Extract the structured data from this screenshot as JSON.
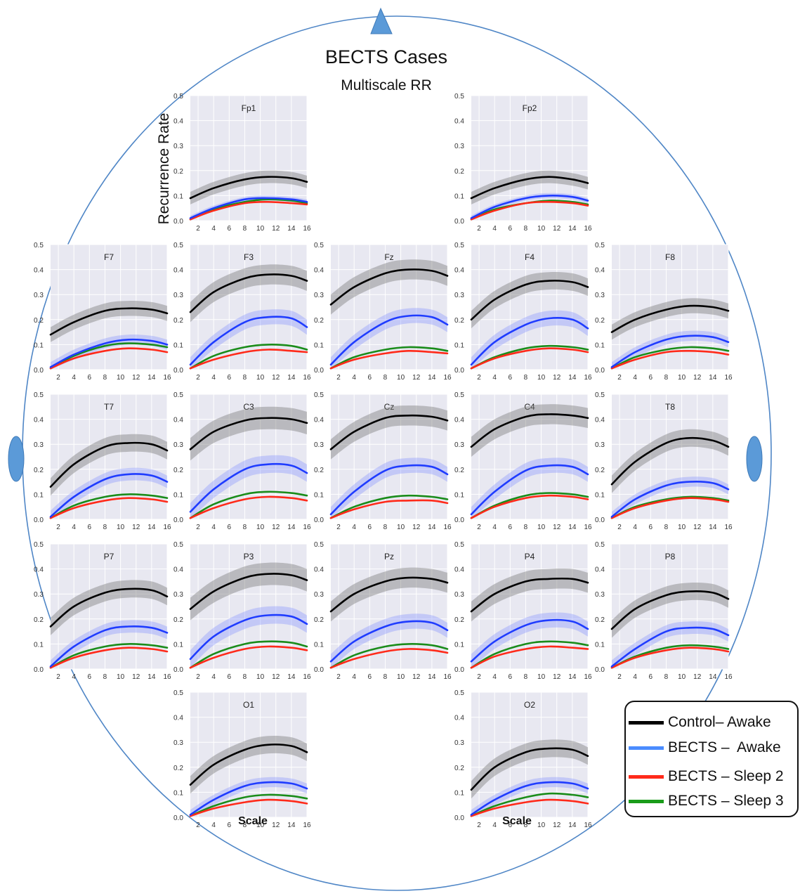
{
  "title": "BECTS Cases",
  "subtitle": "Multiscale RR",
  "ylabel": "Recurrence Rate",
  "xlabel": "Scale",
  "colors": {
    "background": "#e8e8f1",
    "grid": "#ffffff",
    "head": "#4f86c6",
    "marker": "#5b9ad8",
    "control": "#000000",
    "bects_awake": "#1f3cff",
    "sleep2": "#ff2a1a",
    "sleep3": "#1a8c1a"
  },
  "legend": [
    {
      "label": "Control– Awake",
      "color": "#000000"
    },
    {
      "label": "BECTS –  Awake",
      "color": "#4a8cff"
    },
    {
      "label": "BECTS – Sleep 2",
      "color": "#ff2a1a"
    },
    {
      "label": "BECTS – Sleep 3",
      "color": "#1a9c1a"
    }
  ],
  "chart_data": {
    "type": "line",
    "x_ticks": [
      2,
      4,
      6,
      8,
      10,
      12,
      14,
      16
    ],
    "y_ticks": [
      "0.0",
      "0.1",
      "0.2",
      "0.3",
      "0.4",
      "0.5"
    ],
    "ylim": [
      0,
      0.5
    ],
    "xlim": [
      1,
      16
    ],
    "x": [
      1,
      4,
      8,
      11,
      14,
      16
    ],
    "series_names": [
      "Control– Awake",
      "BECTS –  Awake",
      "BECTS – Sleep 2",
      "BECTS – Sleep 3"
    ],
    "panels": [
      {
        "label": "Fp1",
        "control": [
          0.09,
          0.13,
          0.165,
          0.175,
          0.17,
          0.155
        ],
        "control_band": 0.025,
        "awake": [
          0.01,
          0.05,
          0.085,
          0.09,
          0.085,
          0.075
        ],
        "awake_band": 0.01,
        "sleep2": [
          0.005,
          0.04,
          0.07,
          0.075,
          0.07,
          0.065
        ],
        "sleep3": [
          0.005,
          0.045,
          0.075,
          0.085,
          0.08,
          0.07
        ]
      },
      {
        "label": "Fp2",
        "control": [
          0.09,
          0.13,
          0.165,
          0.175,
          0.165,
          0.15
        ],
        "control_band": 0.025,
        "awake": [
          0.01,
          0.055,
          0.09,
          0.1,
          0.095,
          0.08
        ],
        "awake_band": 0.01,
        "sleep2": [
          0.005,
          0.04,
          0.07,
          0.075,
          0.07,
          0.06
        ],
        "sleep3": [
          0.005,
          0.045,
          0.07,
          0.08,
          0.075,
          0.065
        ]
      },
      {
        "label": "F7",
        "control": [
          0.14,
          0.19,
          0.235,
          0.245,
          0.24,
          0.225
        ],
        "control_band": 0.03,
        "awake": [
          0.01,
          0.06,
          0.105,
          0.12,
          0.115,
          0.1
        ],
        "awake_band": 0.02,
        "sleep2": [
          0.005,
          0.045,
          0.075,
          0.085,
          0.08,
          0.07
        ],
        "sleep3": [
          0.005,
          0.055,
          0.095,
          0.105,
          0.1,
          0.09
        ]
      },
      {
        "label": "F3",
        "control": [
          0.23,
          0.31,
          0.365,
          0.38,
          0.375,
          0.355
        ],
        "control_band": 0.04,
        "awake": [
          0.02,
          0.11,
          0.19,
          0.21,
          0.205,
          0.17
        ],
        "awake_band": 0.03,
        "sleep2": [
          0.005,
          0.04,
          0.07,
          0.08,
          0.075,
          0.07
        ],
        "sleep3": [
          0.005,
          0.055,
          0.09,
          0.1,
          0.095,
          0.08
        ]
      },
      {
        "label": "Fz",
        "control": [
          0.26,
          0.33,
          0.385,
          0.4,
          0.395,
          0.375
        ],
        "control_band": 0.04,
        "awake": [
          0.02,
          0.11,
          0.19,
          0.215,
          0.21,
          0.18
        ],
        "awake_band": 0.03,
        "sleep2": [
          0.005,
          0.04,
          0.065,
          0.075,
          0.07,
          0.065
        ],
        "sleep3": [
          0.005,
          0.05,
          0.08,
          0.09,
          0.085,
          0.075
        ]
      },
      {
        "label": "F4",
        "control": [
          0.2,
          0.28,
          0.34,
          0.355,
          0.35,
          0.33
        ],
        "control_band": 0.035,
        "awake": [
          0.02,
          0.11,
          0.18,
          0.205,
          0.2,
          0.165
        ],
        "awake_band": 0.03,
        "sleep2": [
          0.005,
          0.045,
          0.075,
          0.085,
          0.08,
          0.07
        ],
        "sleep3": [
          0.005,
          0.05,
          0.085,
          0.095,
          0.09,
          0.08
        ]
      },
      {
        "label": "F8",
        "control": [
          0.15,
          0.2,
          0.24,
          0.255,
          0.25,
          0.235
        ],
        "control_band": 0.03,
        "awake": [
          0.01,
          0.07,
          0.12,
          0.135,
          0.13,
          0.11
        ],
        "awake_band": 0.02,
        "sleep2": [
          0.005,
          0.04,
          0.07,
          0.075,
          0.07,
          0.06
        ],
        "sleep3": [
          0.005,
          0.05,
          0.08,
          0.09,
          0.085,
          0.075
        ]
      },
      {
        "label": "T7",
        "control": [
          0.13,
          0.22,
          0.29,
          0.305,
          0.3,
          0.275
        ],
        "control_band": 0.035,
        "awake": [
          0.01,
          0.09,
          0.16,
          0.18,
          0.175,
          0.15
        ],
        "awake_band": 0.025,
        "sleep2": [
          0.005,
          0.045,
          0.075,
          0.085,
          0.08,
          0.07
        ],
        "sleep3": [
          0.005,
          0.055,
          0.09,
          0.1,
          0.095,
          0.085
        ]
      },
      {
        "label": "C3",
        "control": [
          0.28,
          0.35,
          0.395,
          0.405,
          0.4,
          0.385
        ],
        "control_band": 0.045,
        "awake": [
          0.03,
          0.12,
          0.2,
          0.22,
          0.215,
          0.185
        ],
        "awake_band": 0.035,
        "sleep2": [
          0.005,
          0.045,
          0.08,
          0.09,
          0.085,
          0.075
        ],
        "sleep3": [
          0.005,
          0.06,
          0.1,
          0.11,
          0.105,
          0.095
        ]
      },
      {
        "label": "Cz",
        "control": [
          0.28,
          0.35,
          0.405,
          0.415,
          0.41,
          0.395
        ],
        "control_band": 0.04,
        "awake": [
          0.02,
          0.11,
          0.195,
          0.215,
          0.21,
          0.18
        ],
        "awake_band": 0.03,
        "sleep2": [
          0.005,
          0.04,
          0.07,
          0.075,
          0.075,
          0.065
        ],
        "sleep3": [
          0.005,
          0.05,
          0.085,
          0.095,
          0.09,
          0.08
        ]
      },
      {
        "label": "C4",
        "control": [
          0.29,
          0.36,
          0.41,
          0.42,
          0.415,
          0.405
        ],
        "control_band": 0.04,
        "awake": [
          0.02,
          0.11,
          0.195,
          0.215,
          0.21,
          0.18
        ],
        "awake_band": 0.03,
        "sleep2": [
          0.005,
          0.05,
          0.085,
          0.095,
          0.09,
          0.08
        ],
        "sleep3": [
          0.005,
          0.055,
          0.095,
          0.105,
          0.1,
          0.09
        ]
      },
      {
        "label": "T8",
        "control": [
          0.14,
          0.23,
          0.305,
          0.325,
          0.315,
          0.29
        ],
        "control_band": 0.035,
        "awake": [
          0.01,
          0.08,
          0.135,
          0.15,
          0.145,
          0.12
        ],
        "awake_band": 0.02,
        "sleep2": [
          0.005,
          0.045,
          0.075,
          0.085,
          0.08,
          0.07
        ],
        "sleep3": [
          0.005,
          0.05,
          0.08,
          0.09,
          0.085,
          0.075
        ]
      },
      {
        "label": "P7",
        "control": [
          0.17,
          0.25,
          0.305,
          0.32,
          0.315,
          0.29
        ],
        "control_band": 0.035,
        "awake": [
          0.01,
          0.09,
          0.155,
          0.17,
          0.165,
          0.145
        ],
        "awake_band": 0.025,
        "sleep2": [
          0.005,
          0.045,
          0.075,
          0.085,
          0.08,
          0.07
        ],
        "sleep3": [
          0.005,
          0.055,
          0.09,
          0.1,
          0.095,
          0.085
        ]
      },
      {
        "label": "P3",
        "control": [
          0.24,
          0.31,
          0.365,
          0.38,
          0.375,
          0.355
        ],
        "control_band": 0.045,
        "awake": [
          0.04,
          0.13,
          0.195,
          0.215,
          0.21,
          0.18
        ],
        "awake_band": 0.035,
        "sleep2": [
          0.005,
          0.045,
          0.08,
          0.09,
          0.085,
          0.075
        ],
        "sleep3": [
          0.005,
          0.06,
          0.1,
          0.11,
          0.105,
          0.09
        ]
      },
      {
        "label": "Pz",
        "control": [
          0.23,
          0.3,
          0.35,
          0.365,
          0.36,
          0.345
        ],
        "control_band": 0.04,
        "awake": [
          0.03,
          0.11,
          0.17,
          0.19,
          0.185,
          0.155
        ],
        "awake_band": 0.03,
        "sleep2": [
          0.005,
          0.04,
          0.07,
          0.08,
          0.075,
          0.065
        ],
        "sleep3": [
          0.005,
          0.055,
          0.09,
          0.1,
          0.095,
          0.08
        ]
      },
      {
        "label": "P4",
        "control": [
          0.23,
          0.3,
          0.35,
          0.36,
          0.36,
          0.345
        ],
        "control_band": 0.04,
        "awake": [
          0.03,
          0.11,
          0.175,
          0.195,
          0.19,
          0.16
        ],
        "awake_band": 0.03,
        "sleep2": [
          0.005,
          0.05,
          0.08,
          0.09,
          0.085,
          0.08
        ],
        "sleep3": [
          0.005,
          0.06,
          0.1,
          0.11,
          0.105,
          0.095
        ]
      },
      {
        "label": "P8",
        "control": [
          0.16,
          0.24,
          0.295,
          0.31,
          0.305,
          0.28
        ],
        "control_band": 0.035,
        "awake": [
          0.01,
          0.08,
          0.15,
          0.165,
          0.16,
          0.135
        ],
        "awake_band": 0.025,
        "sleep2": [
          0.005,
          0.045,
          0.075,
          0.085,
          0.08,
          0.07
        ],
        "sleep3": [
          0.005,
          0.05,
          0.085,
          0.095,
          0.09,
          0.08
        ]
      },
      {
        "label": "O1",
        "control": [
          0.13,
          0.21,
          0.27,
          0.29,
          0.285,
          0.26
        ],
        "control_band": 0.035,
        "awake": [
          0.01,
          0.07,
          0.125,
          0.14,
          0.135,
          0.115
        ],
        "awake_band": 0.02,
        "sleep2": [
          0.005,
          0.035,
          0.06,
          0.07,
          0.065,
          0.055
        ],
        "sleep3": [
          0.005,
          0.045,
          0.08,
          0.09,
          0.085,
          0.075
        ]
      },
      {
        "label": "O2",
        "control": [
          0.11,
          0.2,
          0.26,
          0.275,
          0.27,
          0.245
        ],
        "control_band": 0.035,
        "awake": [
          0.01,
          0.07,
          0.125,
          0.14,
          0.135,
          0.115
        ],
        "awake_band": 0.02,
        "sleep2": [
          0.005,
          0.035,
          0.06,
          0.07,
          0.065,
          0.055
        ],
        "sleep3": [
          0.005,
          0.045,
          0.08,
          0.095,
          0.09,
          0.08
        ]
      }
    ]
  }
}
